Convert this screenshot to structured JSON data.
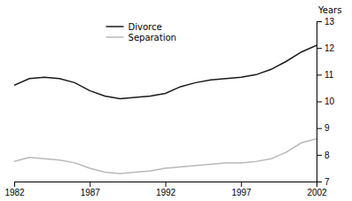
{
  "chart_data": {
    "type": "line",
    "ylabel": "Years",
    "x": [
      1982,
      1983,
      1984,
      1985,
      1986,
      1987,
      1988,
      1989,
      1990,
      1991,
      1992,
      1993,
      1994,
      1995,
      1996,
      1997,
      1998,
      1999,
      2000,
      2001,
      2002
    ],
    "series": [
      {
        "name": "Divorce",
        "color": "#1a1a1a",
        "values": [
          10.6,
          10.85,
          10.9,
          10.85,
          10.7,
          10.4,
          10.2,
          10.1,
          10.15,
          10.2,
          10.3,
          10.55,
          10.7,
          10.8,
          10.85,
          10.9,
          11.0,
          11.2,
          11.5,
          11.85,
          12.1
        ]
      },
      {
        "name": "Separation",
        "color": "#b8b8b8",
        "values": [
          7.75,
          7.9,
          7.85,
          7.8,
          7.7,
          7.5,
          7.35,
          7.3,
          7.35,
          7.4,
          7.5,
          7.55,
          7.6,
          7.65,
          7.7,
          7.7,
          7.75,
          7.85,
          8.1,
          8.45,
          8.6
        ]
      }
    ],
    "xlim": [
      1982,
      2002
    ],
    "ylim": [
      7,
      13
    ],
    "xticks": [
      1982,
      1987,
      1992,
      1997,
      2002
    ],
    "yticks": [
      7,
      8,
      9,
      10,
      11,
      12,
      13
    ],
    "grid": false,
    "legend": "upper center"
  }
}
